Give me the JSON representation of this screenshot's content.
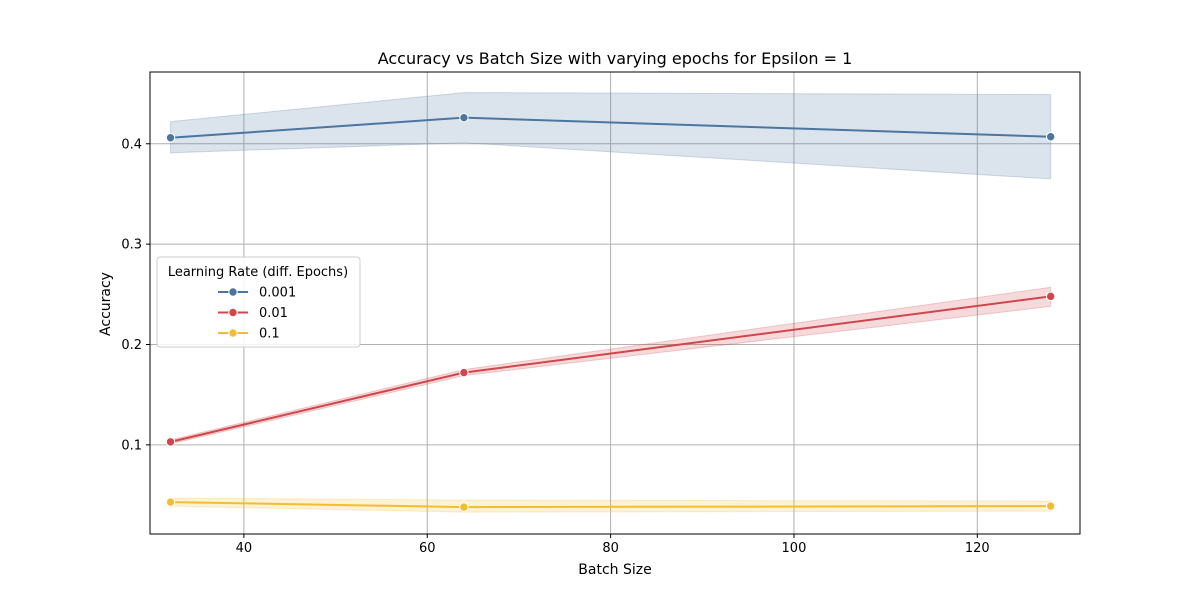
{
  "chart_data": {
    "type": "line",
    "title": "Accuracy vs Batch Size with varying epochs for Epsilon = 1",
    "xlabel": "Batch Size",
    "ylabel": "Accuracy",
    "xlim": [
      29.76,
      131.2
    ],
    "ylim": [
      0.0112,
      0.4715
    ],
    "xticks": [
      40,
      60,
      80,
      100,
      120
    ],
    "yticks": [
      0.1,
      0.2,
      0.3,
      0.4
    ],
    "grid": true,
    "legend": {
      "title": "Learning Rate (diff. Epochs)",
      "placement": "center-left"
    },
    "x": [
      32,
      64,
      128
    ],
    "series": [
      {
        "name": "0.001",
        "color": "#4a76a0",
        "values": [
          0.406,
          0.426,
          0.407
        ],
        "band_low": [
          0.391,
          0.401,
          0.365
        ],
        "band_high": [
          0.422,
          0.451,
          0.449
        ]
      },
      {
        "name": "0.01",
        "color": "#d0464a",
        "values": [
          0.103,
          0.172,
          0.248
        ],
        "band_low": [
          0.101,
          0.169,
          0.238
        ],
        "band_high": [
          0.105,
          0.175,
          0.257
        ]
      },
      {
        "name": "0.1",
        "color": "#f2bd32",
        "values": [
          0.043,
          0.038,
          0.039
        ],
        "band_low": [
          0.039,
          0.033,
          0.034
        ],
        "band_high": [
          0.047,
          0.045,
          0.044
        ]
      }
    ]
  }
}
